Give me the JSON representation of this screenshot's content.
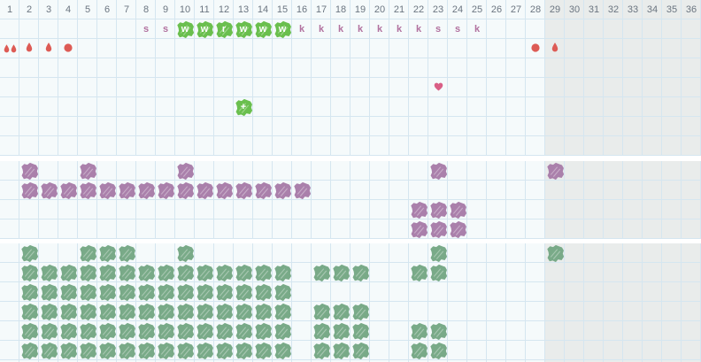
{
  "header": {
    "days": [
      "1",
      "2",
      "3",
      "4",
      "5",
      "6",
      "7",
      "8",
      "9",
      "10",
      "11",
      "12",
      "13",
      "14",
      "15",
      "16",
      "17",
      "18",
      "19",
      "20",
      "21",
      "22",
      "23",
      "24",
      "25",
      "26",
      "27",
      "28",
      "29",
      "30",
      "31",
      "32",
      "33",
      "34",
      "35",
      "36"
    ]
  },
  "layout": {
    "columns": 36,
    "shaded_from_day": 29,
    "top_band_rows": 8
  },
  "colors": {
    "background_light": "#f5fafb",
    "background_shaded": "#e9eceb",
    "gridline": "#d5e6f0",
    "day_number_text": "#6b7580",
    "letter_text": "#b1719f",
    "blood_red": "#dd5b55",
    "heart_pink": "#d95f86",
    "blob_green_bright": "#6abf4e",
    "blob_purple": "#aa80ab",
    "blob_green_sage": "#79aa88"
  },
  "top_band": {
    "mucus_row": {
      "row": 1,
      "markers": [
        {
          "day": 8,
          "style": "text",
          "label": "s"
        },
        {
          "day": 9,
          "style": "text",
          "label": "s"
        },
        {
          "day": 10,
          "style": "blob",
          "label": "w"
        },
        {
          "day": 11,
          "style": "blob",
          "label": "w"
        },
        {
          "day": 12,
          "style": "blob",
          "label": "r"
        },
        {
          "day": 13,
          "style": "blob",
          "label": "w"
        },
        {
          "day": 14,
          "style": "blob",
          "label": "w"
        },
        {
          "day": 15,
          "style": "blob",
          "label": "w"
        },
        {
          "day": 16,
          "style": "text",
          "label": "k"
        },
        {
          "day": 17,
          "style": "text",
          "label": "k"
        },
        {
          "day": 18,
          "style": "text",
          "label": "k"
        },
        {
          "day": 19,
          "style": "text",
          "label": "k"
        },
        {
          "day": 20,
          "style": "text",
          "label": "k"
        },
        {
          "day": 21,
          "style": "text",
          "label": "k"
        },
        {
          "day": 22,
          "style": "text",
          "label": "k"
        },
        {
          "day": 23,
          "style": "text",
          "label": "s"
        },
        {
          "day": 24,
          "style": "text",
          "label": "s"
        },
        {
          "day": 25,
          "style": "text",
          "label": "k"
        }
      ]
    },
    "bleeding_row": {
      "row": 2,
      "markers": [
        {
          "day": 1,
          "icon": "drop-double"
        },
        {
          "day": 2,
          "icon": "drop"
        },
        {
          "day": 3,
          "icon": "drop"
        },
        {
          "day": 4,
          "icon": "dot"
        },
        {
          "day": 28,
          "icon": "dot"
        },
        {
          "day": 29,
          "icon": "drop"
        }
      ]
    },
    "heart_row": {
      "row": 4,
      "markers": [
        {
          "day": 23,
          "icon": "heart"
        }
      ]
    },
    "note_row": {
      "row": 5,
      "markers": [
        {
          "day": 13,
          "icon": "blob-plus",
          "label": "+"
        }
      ]
    }
  },
  "middle_band": {
    "blob_color_key": "blob_purple",
    "rows": [
      {
        "days": [
          2,
          5,
          10,
          23,
          29
        ]
      },
      {
        "days": [
          2,
          3,
          4,
          5,
          6,
          7,
          8,
          9,
          10,
          11,
          12,
          13,
          14,
          15,
          16
        ]
      },
      {
        "days": [
          22,
          23,
          24
        ]
      },
      {
        "days": [
          22,
          23,
          24
        ]
      }
    ]
  },
  "bottom_band": {
    "blob_color_key": "blob_green_sage",
    "rows": [
      {
        "days": [
          2,
          5,
          6,
          7,
          10,
          23,
          29
        ]
      },
      {
        "days": [
          2,
          3,
          4,
          5,
          6,
          7,
          8,
          9,
          10,
          11,
          12,
          13,
          14,
          15,
          17,
          18,
          19,
          22,
          23
        ]
      },
      {
        "days": [
          2,
          3,
          4,
          5,
          6,
          7,
          8,
          9,
          10,
          11,
          12,
          13,
          14,
          15
        ]
      },
      {
        "days": [
          2,
          3,
          4,
          5,
          6,
          7,
          8,
          9,
          10,
          11,
          12,
          13,
          14,
          15,
          17,
          18,
          19
        ]
      },
      {
        "days": [
          2,
          3,
          4,
          5,
          6,
          7,
          8,
          9,
          10,
          11,
          12,
          13,
          14,
          15,
          17,
          18,
          19,
          22,
          23
        ]
      },
      {
        "days": [
          2,
          3,
          4,
          5,
          6,
          7,
          8,
          9,
          10,
          11,
          12,
          13,
          14,
          15,
          17,
          18,
          19,
          22,
          23
        ]
      }
    ]
  }
}
